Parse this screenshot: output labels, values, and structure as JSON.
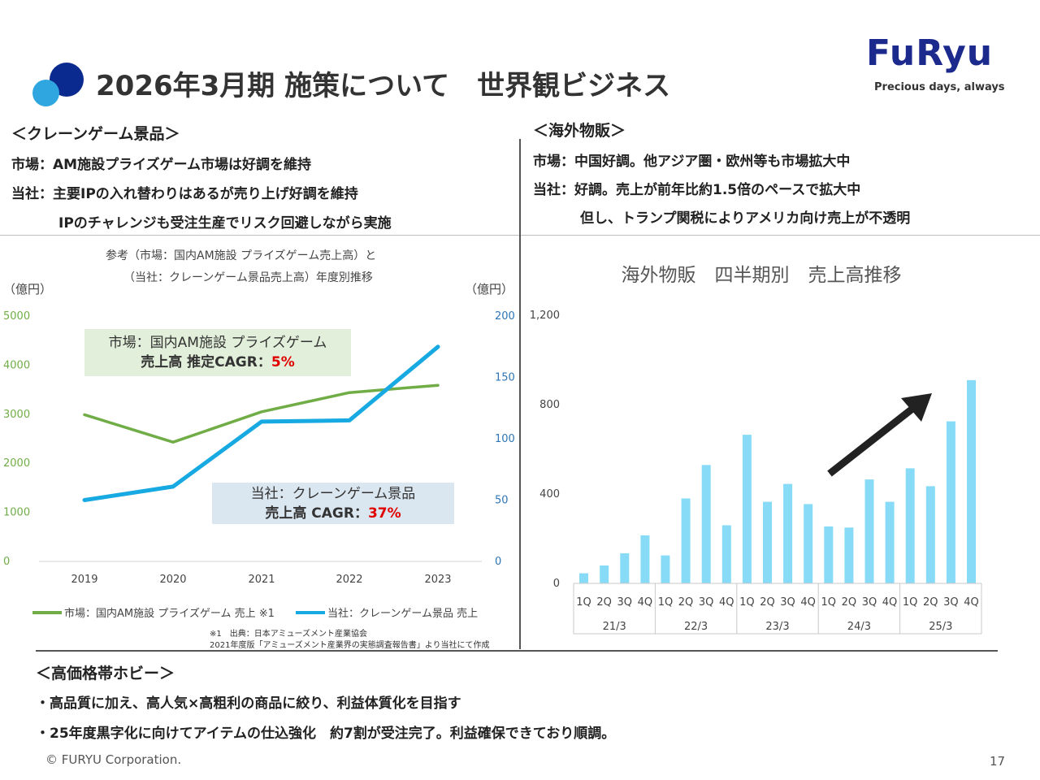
{
  "header": {
    "title": "2026年3月期 施策について　世界観ビジネス",
    "logo": {
      "brand": "FuRyu",
      "tagline": "Precious days, always"
    }
  },
  "crane": {
    "heading": "＜クレーンゲーム景品＞",
    "lines": [
      "市場：AM施設プライズゲーム市場は好調を維持",
      "当社：主要IPの入れ替わりはあるが売り上げ好調を維持",
      "IPのチャレンジも受注生産でリスク回避しながら実施"
    ]
  },
  "overseas": {
    "heading": "＜海外物販＞",
    "lines": [
      "市場：中国好調。他アジア圏・欧州等も市場拡大中",
      "当社：好調。売上が前年比約1.5倍のペースで拡大中",
      "但し、トランプ関税によりアメリカ向け売上が不透明"
    ]
  },
  "hobby": {
    "heading": "＜高価格帯ホビー＞",
    "lines": [
      "・高品質に加え、高人気×高粗利の商品に絞り、利益体質化を目指す",
      "・25年度黒字化に向けてアイテムの仕込強化　約7割が受注完了。利益確保できており順調。"
    ]
  },
  "notes": {
    "left_title_1": "参考（市場：国内AM施設 プライズゲーム売上高）と",
    "left_title_2": "（当社：クレーンゲーム景品売上高）年度別推移",
    "unit_left": "（億円）",
    "unit_right": "（億円）",
    "box_market_1": "市場：国内AM施設 プライズゲーム",
    "box_market_2a": "売上高 推定CAGR：",
    "box_market_2b": "5%",
    "box_company_1": "当社：クレーンゲーム景品",
    "box_company_2a": "売上高 CAGR：",
    "box_company_2b": "37%",
    "source_1": "※1　出典：日本アミューズメント産業協会",
    "source_2": "2021年度版「アミューズメント産業界の実態調査報告書」より当社にて作成"
  },
  "chart_data": [
    {
      "type": "line",
      "title": "",
      "x": [
        "2019",
        "2020",
        "2021",
        "2022",
        "2023"
      ],
      "y_left": {
        "range": [
          0,
          5000
        ],
        "ticks": [
          "0",
          "1000",
          "2000",
          "3000",
          "4000",
          "5000"
        ],
        "label": "（億円）",
        "color": "#70ad47"
      },
      "y_right": {
        "range": [
          0,
          200
        ],
        "ticks": [
          "0",
          "50",
          "100",
          "150",
          "200"
        ],
        "label": "（億円）",
        "color": "#2e75b6"
      },
      "series": [
        {
          "name": "市場：国内AM施設 プライズゲーム 売上 ※1",
          "axis": "left",
          "color": "#70ad47",
          "values": [
            2990,
            2430,
            3050,
            3440,
            3590
          ]
        },
        {
          "name": "当社：クレーンゲーム景品 売上",
          "axis": "right",
          "color": "#17a9e1",
          "values": [
            50,
            61,
            114,
            115,
            175
          ]
        }
      ],
      "legend": "bottom",
      "grid": false
    },
    {
      "type": "bar",
      "title": "海外物販　四半期別　売上高推移",
      "ylim": [
        0,
        1200
      ],
      "yticks": [
        "0",
        "400",
        "800",
        "1,200"
      ],
      "quarters": [
        "1Q",
        "2Q",
        "3Q",
        "4Q"
      ],
      "years": [
        "21/3",
        "22/3",
        "23/3",
        "24/3",
        "25/3"
      ],
      "values": [
        45,
        80,
        135,
        215,
        125,
        380,
        530,
        260,
        665,
        365,
        445,
        355,
        255,
        250,
        465,
        365,
        515,
        435,
        725,
        910
      ],
      "color": "#87dbf7",
      "grid": false,
      "trend_arrow": true
    }
  ],
  "footer": {
    "copyright": "© FURYU Corporation.",
    "page": "17"
  }
}
